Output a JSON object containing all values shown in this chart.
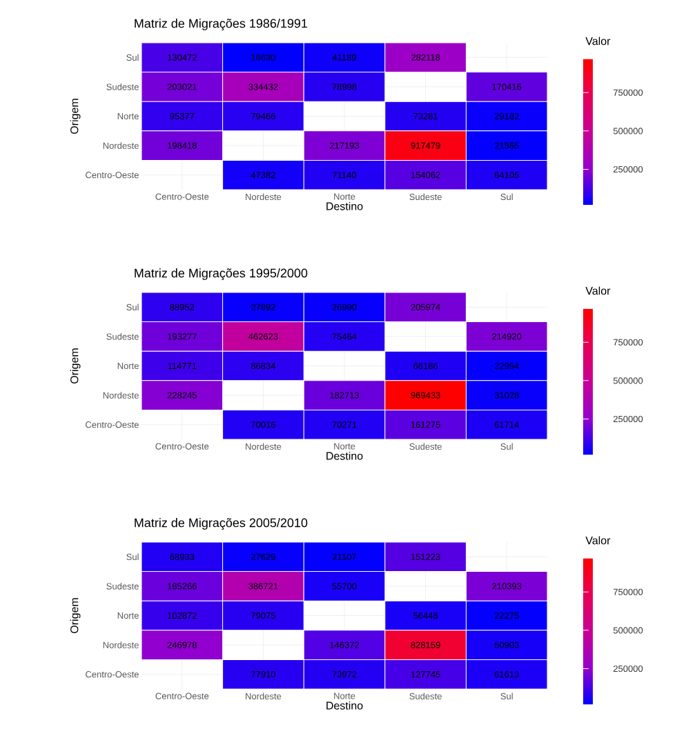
{
  "chart_data": [
    {
      "type": "heatmap",
      "title": "Matriz de Migrações 1986/1991",
      "xlabel": "Destino",
      "ylabel": "Origem",
      "clabel": "Valor",
      "categories": [
        "Centro-Oeste",
        "Nordeste",
        "Norte",
        "Sudeste",
        "Sul"
      ],
      "y_categories": [
        "Sul",
        "Sudeste",
        "Norte",
        "Nordeste",
        "Centro-Oeste"
      ],
      "cells": [
        [
          130472,
          16630,
          41189,
          282118,
          null
        ],
        [
          203021,
          334432,
          78998,
          null,
          170416
        ],
        [
          95377,
          79466,
          null,
          73281,
          29182
        ],
        [
          198418,
          null,
          217193,
          917479,
          21565
        ],
        [
          null,
          47382,
          71140,
          154062,
          64105
        ]
      ],
      "clim": [
        16630,
        969433
      ],
      "cticks": [
        250000,
        500000,
        750000
      ],
      "data_labels": true,
      "grid": true
    },
    {
      "type": "heatmap",
      "title": "Matriz de Migrações 1995/2000",
      "xlabel": "Destino",
      "ylabel": "Origem",
      "clabel": "Valor",
      "categories": [
        "Centro-Oeste",
        "Nordeste",
        "Norte",
        "Sudeste",
        "Sul"
      ],
      "y_categories": [
        "Sul",
        "Sudeste",
        "Norte",
        "Nordeste",
        "Centro-Oeste"
      ],
      "cells": [
        [
          88952,
          27892,
          26990,
          205974,
          null
        ],
        [
          193277,
          462623,
          75464,
          null,
          214920
        ],
        [
          114771,
          86834,
          null,
          68186,
          22954
        ],
        [
          228245,
          null,
          182713,
          969433,
          31028
        ],
        [
          null,
          70016,
          70271,
          161275,
          61714
        ]
      ],
      "clim": [
        16630,
        969433
      ],
      "cticks": [
        250000,
        500000,
        750000
      ],
      "data_labels": true,
      "grid": true
    },
    {
      "type": "heatmap",
      "title": "Matriz de Migrações 2005/2010",
      "xlabel": "Destino",
      "ylabel": "Origem",
      "clabel": "Valor",
      "categories": [
        "Centro-Oeste",
        "Nordeste",
        "Norte",
        "Sudeste",
        "Sul"
      ],
      "y_categories": [
        "Sul",
        "Sudeste",
        "Norte",
        "Nordeste",
        "Centro-Oeste"
      ],
      "cells": [
        [
          68933,
          27629,
          21107,
          151223,
          null
        ],
        [
          185266,
          386721,
          55700,
          null,
          210393
        ],
        [
          102872,
          79075,
          null,
          56448,
          22275
        ],
        [
          246978,
          null,
          146372,
          828159,
          50903
        ],
        [
          null,
          77910,
          73972,
          127745,
          61613
        ]
      ],
      "clim": [
        16630,
        969433
      ],
      "cticks": [
        250000,
        500000,
        750000
      ],
      "data_labels": true,
      "grid": true
    }
  ]
}
